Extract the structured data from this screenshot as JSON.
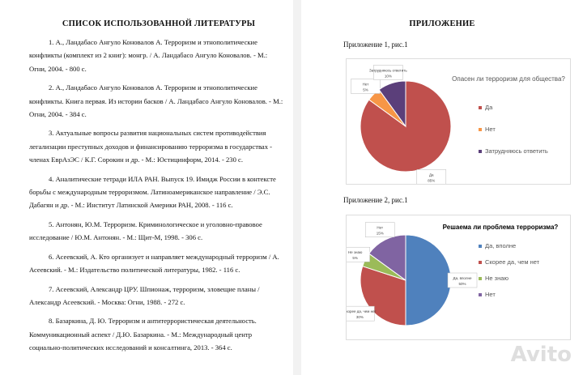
{
  "left": {
    "title": "СПИСОК ИСПОЛЬЗОВАННОЙ ЛИТЕРАТУРЫ",
    "refs": [
      "1. А., Ландабасо Ангуло Коновалов А. Терроризм и этнополитические конфликты (комплект из 2 книг): монгр. / А. Ландабасо Ангуло Коновалов. - М.: Огни, 2004. - 800 с.",
      "2. А., Ландабасо Ангуло Коновалов А. Терроризм и этнополитические конфликты. Книга первая. Из истории басков / А. Ландабасо Ангуло Коновалов. - М.: Огни, 2004. - 384 с.",
      "3. Актуальные вопросы развития национальных систем противодействия легализации преступных доходов и финансированию терроризма в государствах - членах ЕврАзЭС / К.Г. Сорокин и др. - М.: Юстицинформ, 2014. - 230 с.",
      "4. Аналитические тетради ИЛА РАН. Выпуск 19. Имидж России в контексте борьбы с международным терроризмом. Латиноамериканское направление / Э.С. Дабагян и др. - М.: Институт Латинской Америки РАН, 2008. - 116 с.",
      "5. Антонян, Ю.М. Терроризм. Криминологическое и уголовно-правовое исследование / Ю.М. Антонян. - М.: Щит-М, 1998. - 306 с.",
      "6. Асеевский, А. Кто организует и направляет международный терроризм / А. Асеевский. - М.: Издательство политической литературы, 1982. - 116 с.",
      "7. Асеевский, Александр ЦРУ. Шпионаж, терроризм, зловещие планы / Александр Асеевский. - Москва: Огни, 1988. - 272 с.",
      "8. Базаркина, Д. Ю. Терроризм и антитеррористическая деятельность. Коммуникационный аспект / Д.Ю. Базаркина. - М.: Международный центр социально-политических исследований и консалтинга, 2013. - 364 с."
    ]
  },
  "right": {
    "title": "ПРИЛОЖЕНИЕ",
    "caption1": "Приложение 1, рис.1",
    "caption2": "Приложение 2, рис.1"
  },
  "watermark": "Avito",
  "chart_data": [
    {
      "type": "pie",
      "title": "Опасен ли терроризм для общества?",
      "legend": "right",
      "slices": [
        {
          "label": "Да",
          "value": 85,
          "color": "#c0504d"
        },
        {
          "label": "Нет",
          "value": 5,
          "color": "#f79646"
        },
        {
          "label": "Затрудняюсь ответить",
          "value": 10,
          "color": "#5b3f7a"
        }
      ]
    },
    {
      "type": "pie",
      "title": "Решаема ли проблема терроризма?",
      "legend": "right",
      "slices": [
        {
          "label": "Да, вполне",
          "value": 50,
          "color": "#4f81bd"
        },
        {
          "label": "Скорее да, чем нет",
          "value": 30,
          "color": "#c0504d"
        },
        {
          "label": "Не знаю",
          "value": 5,
          "color": "#9bbb59"
        },
        {
          "label": "Нет",
          "value": 15,
          "color": "#8064a2"
        }
      ]
    }
  ]
}
